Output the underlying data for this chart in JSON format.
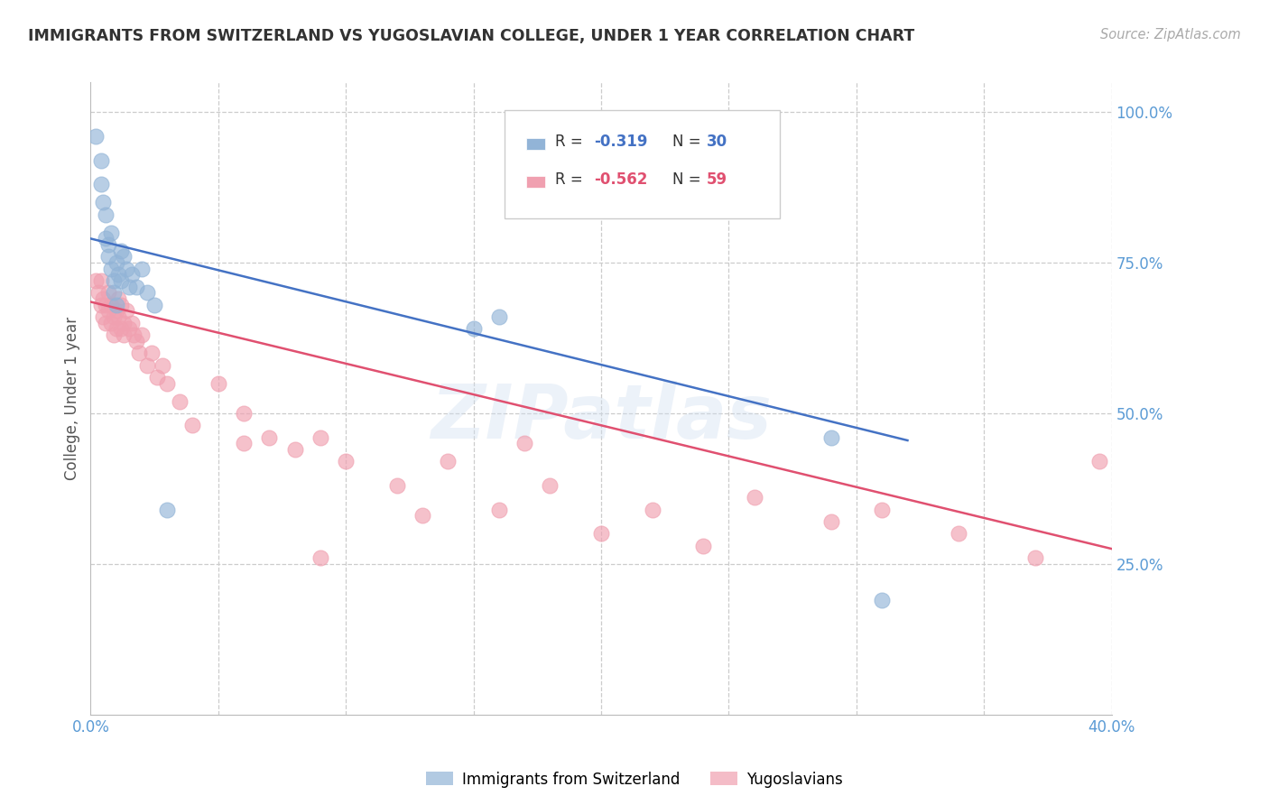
{
  "title": "IMMIGRANTS FROM SWITZERLAND VS YUGOSLAVIAN COLLEGE, UNDER 1 YEAR CORRELATION CHART",
  "source": "Source: ZipAtlas.com",
  "ylabel": "College, Under 1 year",
  "xlim": [
    0.0,
    0.4
  ],
  "ylim": [
    0.0,
    1.05
  ],
  "ytick_positions": [
    0.25,
    0.5,
    0.75,
    1.0
  ],
  "ytick_labels": [
    "25.0%",
    "50.0%",
    "75.0%",
    "100.0%"
  ],
  "watermark": "ZIPatlas",
  "legend_r1": "R = ",
  "legend_v1": "-0.319",
  "legend_n1_label": "N = ",
  "legend_n1_val": "30",
  "legend_r2": "R = ",
  "legend_v2": "-0.562",
  "legend_n2_label": "N = ",
  "legend_n2_val": "59",
  "legend_label1": "Immigrants from Switzerland",
  "legend_label2": "Yugoslavians",
  "blue_color": "#92b4d7",
  "pink_color": "#f0a0b0",
  "line_blue": "#4472c4",
  "line_pink": "#e05070",
  "blue_legend_color": "#92b4d7",
  "pink_legend_color": "#f0a0b0",
  "swiss_x": [
    0.002,
    0.004,
    0.004,
    0.005,
    0.006,
    0.006,
    0.007,
    0.007,
    0.008,
    0.008,
    0.009,
    0.009,
    0.01,
    0.01,
    0.011,
    0.012,
    0.012,
    0.013,
    0.014,
    0.015,
    0.016,
    0.018,
    0.02,
    0.022,
    0.025,
    0.03,
    0.15,
    0.16,
    0.29,
    0.31
  ],
  "swiss_y": [
    0.96,
    0.92,
    0.88,
    0.85,
    0.83,
    0.79,
    0.78,
    0.76,
    0.8,
    0.74,
    0.72,
    0.7,
    0.75,
    0.68,
    0.73,
    0.77,
    0.72,
    0.76,
    0.74,
    0.71,
    0.73,
    0.71,
    0.74,
    0.7,
    0.68,
    0.34,
    0.64,
    0.66,
    0.46,
    0.19
  ],
  "yugo_x": [
    0.002,
    0.003,
    0.004,
    0.004,
    0.005,
    0.005,
    0.006,
    0.006,
    0.007,
    0.007,
    0.008,
    0.008,
    0.009,
    0.009,
    0.01,
    0.01,
    0.011,
    0.011,
    0.012,
    0.012,
    0.013,
    0.013,
    0.014,
    0.015,
    0.016,
    0.017,
    0.018,
    0.019,
    0.02,
    0.022,
    0.024,
    0.026,
    0.028,
    0.03,
    0.035,
    0.04,
    0.05,
    0.06,
    0.07,
    0.08,
    0.09,
    0.1,
    0.12,
    0.14,
    0.16,
    0.18,
    0.2,
    0.22,
    0.24,
    0.26,
    0.29,
    0.31,
    0.34,
    0.37,
    0.395,
    0.06,
    0.09,
    0.13,
    0.17
  ],
  "yugo_y": [
    0.72,
    0.7,
    0.68,
    0.72,
    0.69,
    0.66,
    0.68,
    0.65,
    0.7,
    0.67,
    0.65,
    0.68,
    0.66,
    0.63,
    0.67,
    0.64,
    0.69,
    0.66,
    0.64,
    0.68,
    0.65,
    0.63,
    0.67,
    0.64,
    0.65,
    0.63,
    0.62,
    0.6,
    0.63,
    0.58,
    0.6,
    0.56,
    0.58,
    0.55,
    0.52,
    0.48,
    0.55,
    0.5,
    0.46,
    0.44,
    0.46,
    0.42,
    0.38,
    0.42,
    0.34,
    0.38,
    0.3,
    0.34,
    0.28,
    0.36,
    0.32,
    0.34,
    0.3,
    0.26,
    0.42,
    0.45,
    0.26,
    0.33,
    0.45
  ],
  "swiss_trendline_x": [
    0.0,
    0.32
  ],
  "swiss_trendline_y": [
    0.79,
    0.455
  ],
  "yugo_trendline_x": [
    0.0,
    0.4
  ],
  "yugo_trendline_y": [
    0.685,
    0.275
  ]
}
